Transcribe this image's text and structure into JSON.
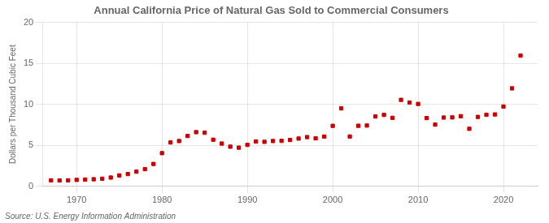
{
  "chart_data": {
    "type": "scatter",
    "title": "Annual California Price of Natural Gas Sold to Commercial Consumers",
    "ylabel": "Dollars per Thousand Cubic Feet",
    "source": "Source: U.S. Energy Information Administration",
    "x": [
      1967,
      1968,
      1969,
      1970,
      1971,
      1972,
      1973,
      1974,
      1975,
      1976,
      1977,
      1978,
      1979,
      1980,
      1981,
      1982,
      1983,
      1984,
      1985,
      1986,
      1987,
      1988,
      1989,
      1990,
      1991,
      1992,
      1993,
      1994,
      1995,
      1996,
      1997,
      1998,
      1999,
      2000,
      2001,
      2002,
      2003,
      2004,
      2005,
      2006,
      2007,
      2008,
      2009,
      2010,
      2011,
      2012,
      2013,
      2014,
      2015,
      2016,
      2017,
      2018,
      2019,
      2020,
      2021,
      2022
    ],
    "values": [
      0.73,
      0.72,
      0.73,
      0.79,
      0.83,
      0.87,
      0.93,
      1.07,
      1.33,
      1.5,
      1.79,
      2.1,
      2.73,
      4.05,
      5.35,
      5.53,
      6.14,
      6.61,
      6.54,
      5.69,
      5.22,
      4.84,
      4.72,
      5.06,
      5.47,
      5.43,
      5.53,
      5.55,
      5.66,
      5.83,
      6.01,
      5.86,
      6.07,
      7.38,
      9.51,
      6.08,
      7.39,
      7.42,
      8.52,
      8.72,
      8.36,
      10.55,
      10.22,
      10.05,
      8.33,
      7.53,
      8.39,
      8.41,
      8.56,
      7.02,
      8.47,
      8.73,
      8.77,
      9.73,
      11.95,
      15.95
    ],
    "color": "#cc0000",
    "marker": "square",
    "xlim": [
      1966,
      2024
    ],
    "xticks": [
      1970,
      1980,
      1990,
      2000,
      2010,
      2020
    ],
    "ylim": [
      0,
      20
    ],
    "yticks": [
      0,
      5,
      10,
      15,
      20
    ],
    "grid": true
  }
}
